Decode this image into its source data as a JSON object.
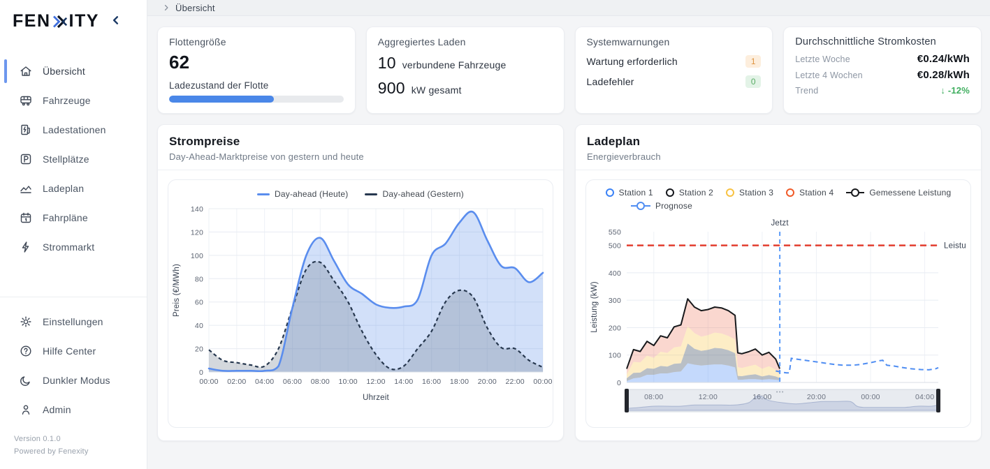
{
  "colors": {
    "accent": "#4a87e8",
    "active_indicator": "#6d97ee"
  },
  "sidebar": {
    "logo_prefix": "FEN",
    "logo_suffix": "ITY",
    "items": [
      {
        "label": "Übersicht",
        "icon": "home-icon",
        "active": true
      },
      {
        "label": "Fahrzeuge",
        "icon": "bus-icon"
      },
      {
        "label": "Ladestationen",
        "icon": "charging-station-icon"
      },
      {
        "label": "Stellplätze",
        "icon": "parking-icon"
      },
      {
        "label": "Ladeplan",
        "icon": "area-chart-icon"
      },
      {
        "label": "Fahrpläne",
        "icon": "calendar-icon"
      },
      {
        "label": "Strommarkt",
        "icon": "bolt-icon"
      }
    ],
    "footer_items": [
      {
        "label": "Einstellungen",
        "icon": "gear-icon"
      },
      {
        "label": "Hilfe Center",
        "icon": "help-icon"
      },
      {
        "label": "Dunkler Modus",
        "icon": "moon-icon"
      },
      {
        "label": "Admin",
        "icon": "user-icon"
      }
    ],
    "version": "Version 0.1.0",
    "powered": "Powered by Fenexity"
  },
  "topbar": {
    "breadcrumb": "Übersicht"
  },
  "cards": {
    "fleet": {
      "title": "Flottengröße",
      "value": "62",
      "progress_label": "Ladezustand der Flotte",
      "progress_pct": 60
    },
    "charging": {
      "title": "Aggregiertes Laden",
      "vehicles_value": "10",
      "vehicles_label": "verbundene Fahrzeuge",
      "power_value": "900",
      "power_label": "kW gesamt"
    },
    "warnings": {
      "title": "Systemwarnungen",
      "rows": [
        {
          "label": "Wartung erforderlich",
          "value": "1"
        },
        {
          "label": "Ladefehler",
          "value": "0"
        }
      ],
      "warn_bg": "#fdeedd",
      "warn_text": "#de9340",
      "ok_bg": "#e3f3e7",
      "ok_text": "#57ab63"
    },
    "costs": {
      "title": "Durchschnittliche Stromkosten",
      "rows": [
        {
          "label": "Letzte Woche",
          "value": "€0.24/kWh"
        },
        {
          "label": "Letzte 4 Wochen",
          "value": "€0.28/kWh"
        }
      ],
      "trend_label": "Trend",
      "trend_value": "↓ -12%",
      "trend_color": "#3fae5f"
    }
  },
  "chart_data": [
    {
      "type": "area",
      "title": "Strompreise",
      "subtitle": "Day-Ahead-Marktpreise von gestern und heute",
      "xlabel": "Uhrzeit",
      "ylabel": "Preis (€/MWh)",
      "xlim": [
        0,
        24
      ],
      "ylim": [
        0,
        140
      ],
      "yticks": [
        0,
        20,
        40,
        60,
        80,
        100,
        120,
        140
      ],
      "xtick_hours": [
        0,
        2,
        4,
        6,
        8,
        10,
        12,
        14,
        16,
        18,
        20,
        22,
        24
      ],
      "xtick_labels": [
        "00:00",
        "02:00",
        "04:00",
        "06:00",
        "08:00",
        "10:00",
        "12:00",
        "14:00",
        "16:00",
        "18:00",
        "20:00",
        "22:00",
        "00:00"
      ],
      "x_hours": [
        0,
        1,
        2,
        3,
        4,
        5,
        6,
        7,
        8,
        9,
        10,
        11,
        12,
        13,
        14,
        15,
        16,
        17,
        18,
        19,
        20,
        21,
        22,
        23,
        24
      ],
      "series": [
        {
          "name": "Day-ahead (Heute)",
          "color": "#5a8dee",
          "fill": "rgba(95,142,235,0.28)",
          "values": [
            3,
            1,
            1,
            1,
            1,
            5,
            55,
            100,
            115,
            95,
            75,
            67,
            58,
            55,
            56,
            62,
            100,
            110,
            128,
            137,
            113,
            91,
            89,
            77,
            85
          ]
        },
        {
          "name": "Day-ahead (Gestern)",
          "color": "#27384f",
          "fill": "rgba(112,125,143,0.30)",
          "dashed": true,
          "values": [
            19,
            10,
            8,
            6,
            5,
            20,
            55,
            88,
            94,
            78,
            60,
            35,
            15,
            3,
            5,
            20,
            35,
            60,
            70,
            64,
            38,
            21,
            20,
            10,
            4
          ]
        }
      ],
      "grid": true,
      "legend_position": "top"
    },
    {
      "type": "stacked-area+line",
      "title": "Ladeplan",
      "subtitle": "Energieverbrauch",
      "ylabel": "Leistung (kW)",
      "xlim": [
        6,
        29
      ],
      "ylim": [
        0,
        550
      ],
      "yticks": [
        0,
        100,
        200,
        300,
        400,
        500,
        550
      ],
      "xtick_hours": [
        8,
        12,
        16,
        20,
        24,
        28
      ],
      "xtick_labels": [
        "08:00",
        "12:00",
        "16:00",
        "20:00",
        "00:00",
        "04:00"
      ],
      "stack_hours": [
        6,
        6.5,
        7,
        7.5,
        8,
        8.5,
        9,
        9.5,
        10,
        10.5,
        11,
        11.5,
        12,
        12.5,
        13,
        13.5,
        14,
        14.2,
        14.5,
        15,
        15.5,
        16,
        16.5,
        17,
        17.3
      ],
      "stations": [
        {
          "name": "Station 1",
          "color": "#3b82f6",
          "fill": "rgba(59,130,246,0.30)",
          "values": [
            5,
            15,
            18,
            28,
            28,
            33,
            33,
            38,
            40,
            70,
            65,
            62,
            64,
            66,
            66,
            62,
            55,
            10,
            10,
            12,
            12,
            10,
            12,
            10,
            8
          ]
        },
        {
          "name": "Station 2",
          "color": "#16181d",
          "fill": "rgba(100,112,128,0.45)",
          "values": [
            10,
            20,
            18,
            24,
            22,
            27,
            25,
            30,
            30,
            72,
            58,
            53,
            55,
            60,
            58,
            56,
            52,
            14,
            13,
            15,
            18,
            12,
            15,
            12,
            8
          ]
        },
        {
          "name": "Station 3",
          "color": "#f8c243",
          "fill": "rgba(248,194,67,0.30)",
          "values": [
            15,
            40,
            37,
            46,
            40,
            52,
            50,
            60,
            62,
            63,
            57,
            52,
            54,
            56,
            55,
            52,
            50,
            32,
            30,
            32,
            35,
            28,
            32,
            25,
            14
          ]
        },
        {
          "name": "Station 4",
          "color": "#f05a28",
          "fill": "rgba(240,122,95,0.30)",
          "values": [
            20,
            45,
            40,
            52,
            45,
            58,
            55,
            75,
            78,
            100,
            95,
            95,
            93,
            93,
            93,
            92,
            88,
            52,
            52,
            53,
            57,
            50,
            51,
            38,
            20
          ]
        }
      ],
      "measured": {
        "name": "Gemessene Leistung",
        "color": "#17191c"
      },
      "prognose": {
        "name": "Prognose",
        "color": "#4f8df2",
        "points": [
          [
            17.0,
            42
          ],
          [
            17.4,
            38
          ],
          [
            17.8,
            35
          ],
          [
            18.0,
            35
          ],
          [
            18.15,
            88
          ],
          [
            18.7,
            84
          ],
          [
            19.3,
            80
          ],
          [
            20,
            75
          ],
          [
            20.7,
            70
          ],
          [
            21.3,
            66
          ],
          [
            22,
            63
          ],
          [
            22.7,
            63
          ],
          [
            23.3,
            66
          ],
          [
            24,
            72
          ],
          [
            24.6,
            79
          ],
          [
            24.9,
            81
          ],
          [
            25.2,
            63
          ],
          [
            25.7,
            60
          ],
          [
            26.3,
            55
          ],
          [
            27,
            50
          ],
          [
            27.7,
            47
          ],
          [
            28.3,
            46
          ],
          [
            28.8,
            50
          ],
          [
            29,
            54
          ]
        ]
      },
      "limit_line": {
        "value": 500,
        "label": "Leistu",
        "color": "#e23d2e"
      },
      "now_line": {
        "hour": 17.3,
        "label": "Jetzt",
        "color": "#5b9bf8"
      },
      "brush": {
        "labels_hours": [
          8,
          12,
          16,
          20,
          24,
          28
        ],
        "labels": [
          "08:00",
          "12:00",
          "16:00",
          "20:00",
          "00:00",
          "04:00"
        ],
        "profile": [
          [
            6,
            1
          ],
          [
            7,
            2
          ],
          [
            8,
            3
          ],
          [
            9,
            3
          ],
          [
            10,
            3
          ],
          [
            11,
            4
          ],
          [
            12,
            4
          ],
          [
            13,
            4
          ],
          [
            14,
            4
          ],
          [
            15,
            6
          ],
          [
            15.7,
            12
          ],
          [
            16.5,
            8
          ],
          [
            17.5,
            6
          ],
          [
            18.5,
            5
          ],
          [
            19.5,
            6
          ],
          [
            20.5,
            7
          ],
          [
            21.5,
            7
          ],
          [
            22.5,
            7
          ],
          [
            23,
            3
          ],
          [
            23.5,
            2
          ],
          [
            24.5,
            2
          ],
          [
            25.5,
            2
          ],
          [
            26.5,
            2
          ],
          [
            27.5,
            3
          ],
          [
            28.5,
            3
          ],
          [
            29,
            4
          ]
        ]
      },
      "grid": true,
      "legend_position": "top"
    }
  ]
}
